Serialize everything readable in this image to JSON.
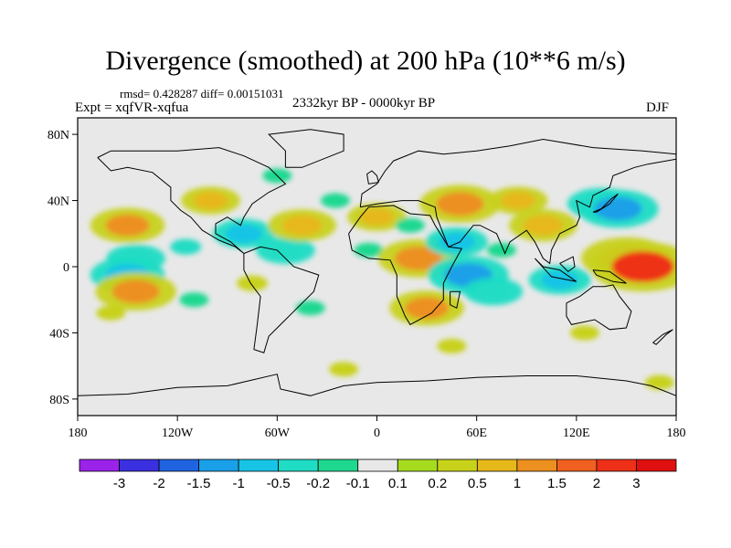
{
  "header": {
    "title": "Divergence (smoothed) at 200 hPa (10**6 m/s)",
    "stats": "rmsd= 0.428287 diff= 0.00151031",
    "experiment": "Expt = xqfVR-xqfua",
    "period": "2332kyr BP - 0000kyr BP",
    "season": "DJF"
  },
  "chart_data": {
    "type": "heatmap",
    "title": "Divergence (smoothed) at 200 hPa (10**6 m/s)",
    "variable": "Divergence (smoothed) at 200 hPa",
    "units": "10**6 m/s",
    "season": "DJF",
    "experiment": "xqfVR-xqfua",
    "period": "2332kyr BP - 0000kyr BP",
    "rmsd": 0.428287,
    "diff": 0.00151031,
    "xlim": [
      -180,
      180
    ],
    "ylim": [
      -90,
      90
    ],
    "x_ticks": [
      {
        "value": -180,
        "label": "180"
      },
      {
        "value": -120,
        "label": "120W"
      },
      {
        "value": -60,
        "label": "60W"
      },
      {
        "value": 0,
        "label": "0"
      },
      {
        "value": 60,
        "label": "60E"
      },
      {
        "value": 120,
        "label": "120E"
      },
      {
        "value": 180,
        "label": "180"
      }
    ],
    "y_ticks": [
      {
        "value": 80,
        "label": "80N"
      },
      {
        "value": 40,
        "label": "40N"
      },
      {
        "value": 0,
        "label": "0"
      },
      {
        "value": -40,
        "label": "40S"
      },
      {
        "value": -80,
        "label": "80S"
      }
    ],
    "colorbar": {
      "labels": [
        "-3",
        "-2",
        "-1.5",
        "-1",
        "-0.5",
        "-0.2",
        "-0.1",
        "0.1",
        "0.2",
        "0.5",
        "1",
        "1.5",
        "2",
        "3"
      ],
      "colors": [
        "#9b22e8",
        "#3a30e0",
        "#1f63e0",
        "#1aa0e8",
        "#18c4e6",
        "#20dcc4",
        "#1ed890",
        "#e8e8e8",
        "#a6dc1e",
        "#c8d21a",
        "#e6b81a",
        "#ec9020",
        "#f06020",
        "#ee3018",
        "#e01010"
      ]
    },
    "map_background": "#e8e8e8",
    "features": [
      {
        "lon": -150,
        "lat": 25,
        "value": 1.0
      },
      {
        "lon": -145,
        "lat": 5,
        "value": -0.5
      },
      {
        "lon": -150,
        "lat": -5,
        "value": -1.0
      },
      {
        "lon": -145,
        "lat": -15,
        "value": 1.2
      },
      {
        "lon": -160,
        "lat": -28,
        "value": 0.2
      },
      {
        "lon": -115,
        "lat": 12,
        "value": -0.3
      },
      {
        "lon": -110,
        "lat": -20,
        "value": -0.2
      },
      {
        "lon": -100,
        "lat": 40,
        "value": 0.5
      },
      {
        "lon": -80,
        "lat": 20,
        "value": -0.6
      },
      {
        "lon": -75,
        "lat": -10,
        "value": 0.3
      },
      {
        "lon": -60,
        "lat": 55,
        "value": -0.2
      },
      {
        "lon": -55,
        "lat": 10,
        "value": -0.5
      },
      {
        "lon": -45,
        "lat": 25,
        "value": 0.8
      },
      {
        "lon": -40,
        "lat": -25,
        "value": -0.2
      },
      {
        "lon": -25,
        "lat": 40,
        "value": -0.2
      },
      {
        "lon": -5,
        "lat": 10,
        "value": -0.2
      },
      {
        "lon": 0,
        "lat": 30,
        "value": 0.5
      },
      {
        "lon": 20,
        "lat": 25,
        "value": -0.2
      },
      {
        "lon": 25,
        "lat": 5,
        "value": 1.2
      },
      {
        "lon": 30,
        "lat": -25,
        "value": 1.0
      },
      {
        "lon": 48,
        "lat": 15,
        "value": -0.6
      },
      {
        "lon": 50,
        "lat": 38,
        "value": 1.2
      },
      {
        "lon": 55,
        "lat": -5,
        "value": -1.2
      },
      {
        "lon": 70,
        "lat": -15,
        "value": -0.5
      },
      {
        "lon": 75,
        "lat": 10,
        "value": -0.2
      },
      {
        "lon": 85,
        "lat": 40,
        "value": 0.5
      },
      {
        "lon": 100,
        "lat": 25,
        "value": 0.8
      },
      {
        "lon": 110,
        "lat": -8,
        "value": -0.6
      },
      {
        "lon": 135,
        "lat": 38,
        "value": -0.8
      },
      {
        "lon": 145,
        "lat": 35,
        "value": -1.2
      },
      {
        "lon": 150,
        "lat": 5,
        "value": 1.5
      },
      {
        "lon": 160,
        "lat": 0,
        "value": 2.0
      },
      {
        "lon": 125,
        "lat": -40,
        "value": 0.2
      },
      {
        "lon": -20,
        "lat": -62,
        "value": 0.2
      },
      {
        "lon": 45,
        "lat": -48,
        "value": 0.2
      },
      {
        "lon": 170,
        "lat": -70,
        "value": 0.2
      }
    ]
  }
}
